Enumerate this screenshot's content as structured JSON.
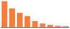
{
  "chart_data": {
    "type": "bar",
    "categories": [
      null,
      null,
      null,
      null,
      null,
      null,
      null,
      null,
      null
    ],
    "values": [
      100,
      72,
      55,
      42,
      22,
      13,
      8,
      4,
      2
    ],
    "color": "#F47C3C",
    "ylim": [
      0,
      102
    ],
    "grid": false,
    "tick_labels": false
  }
}
